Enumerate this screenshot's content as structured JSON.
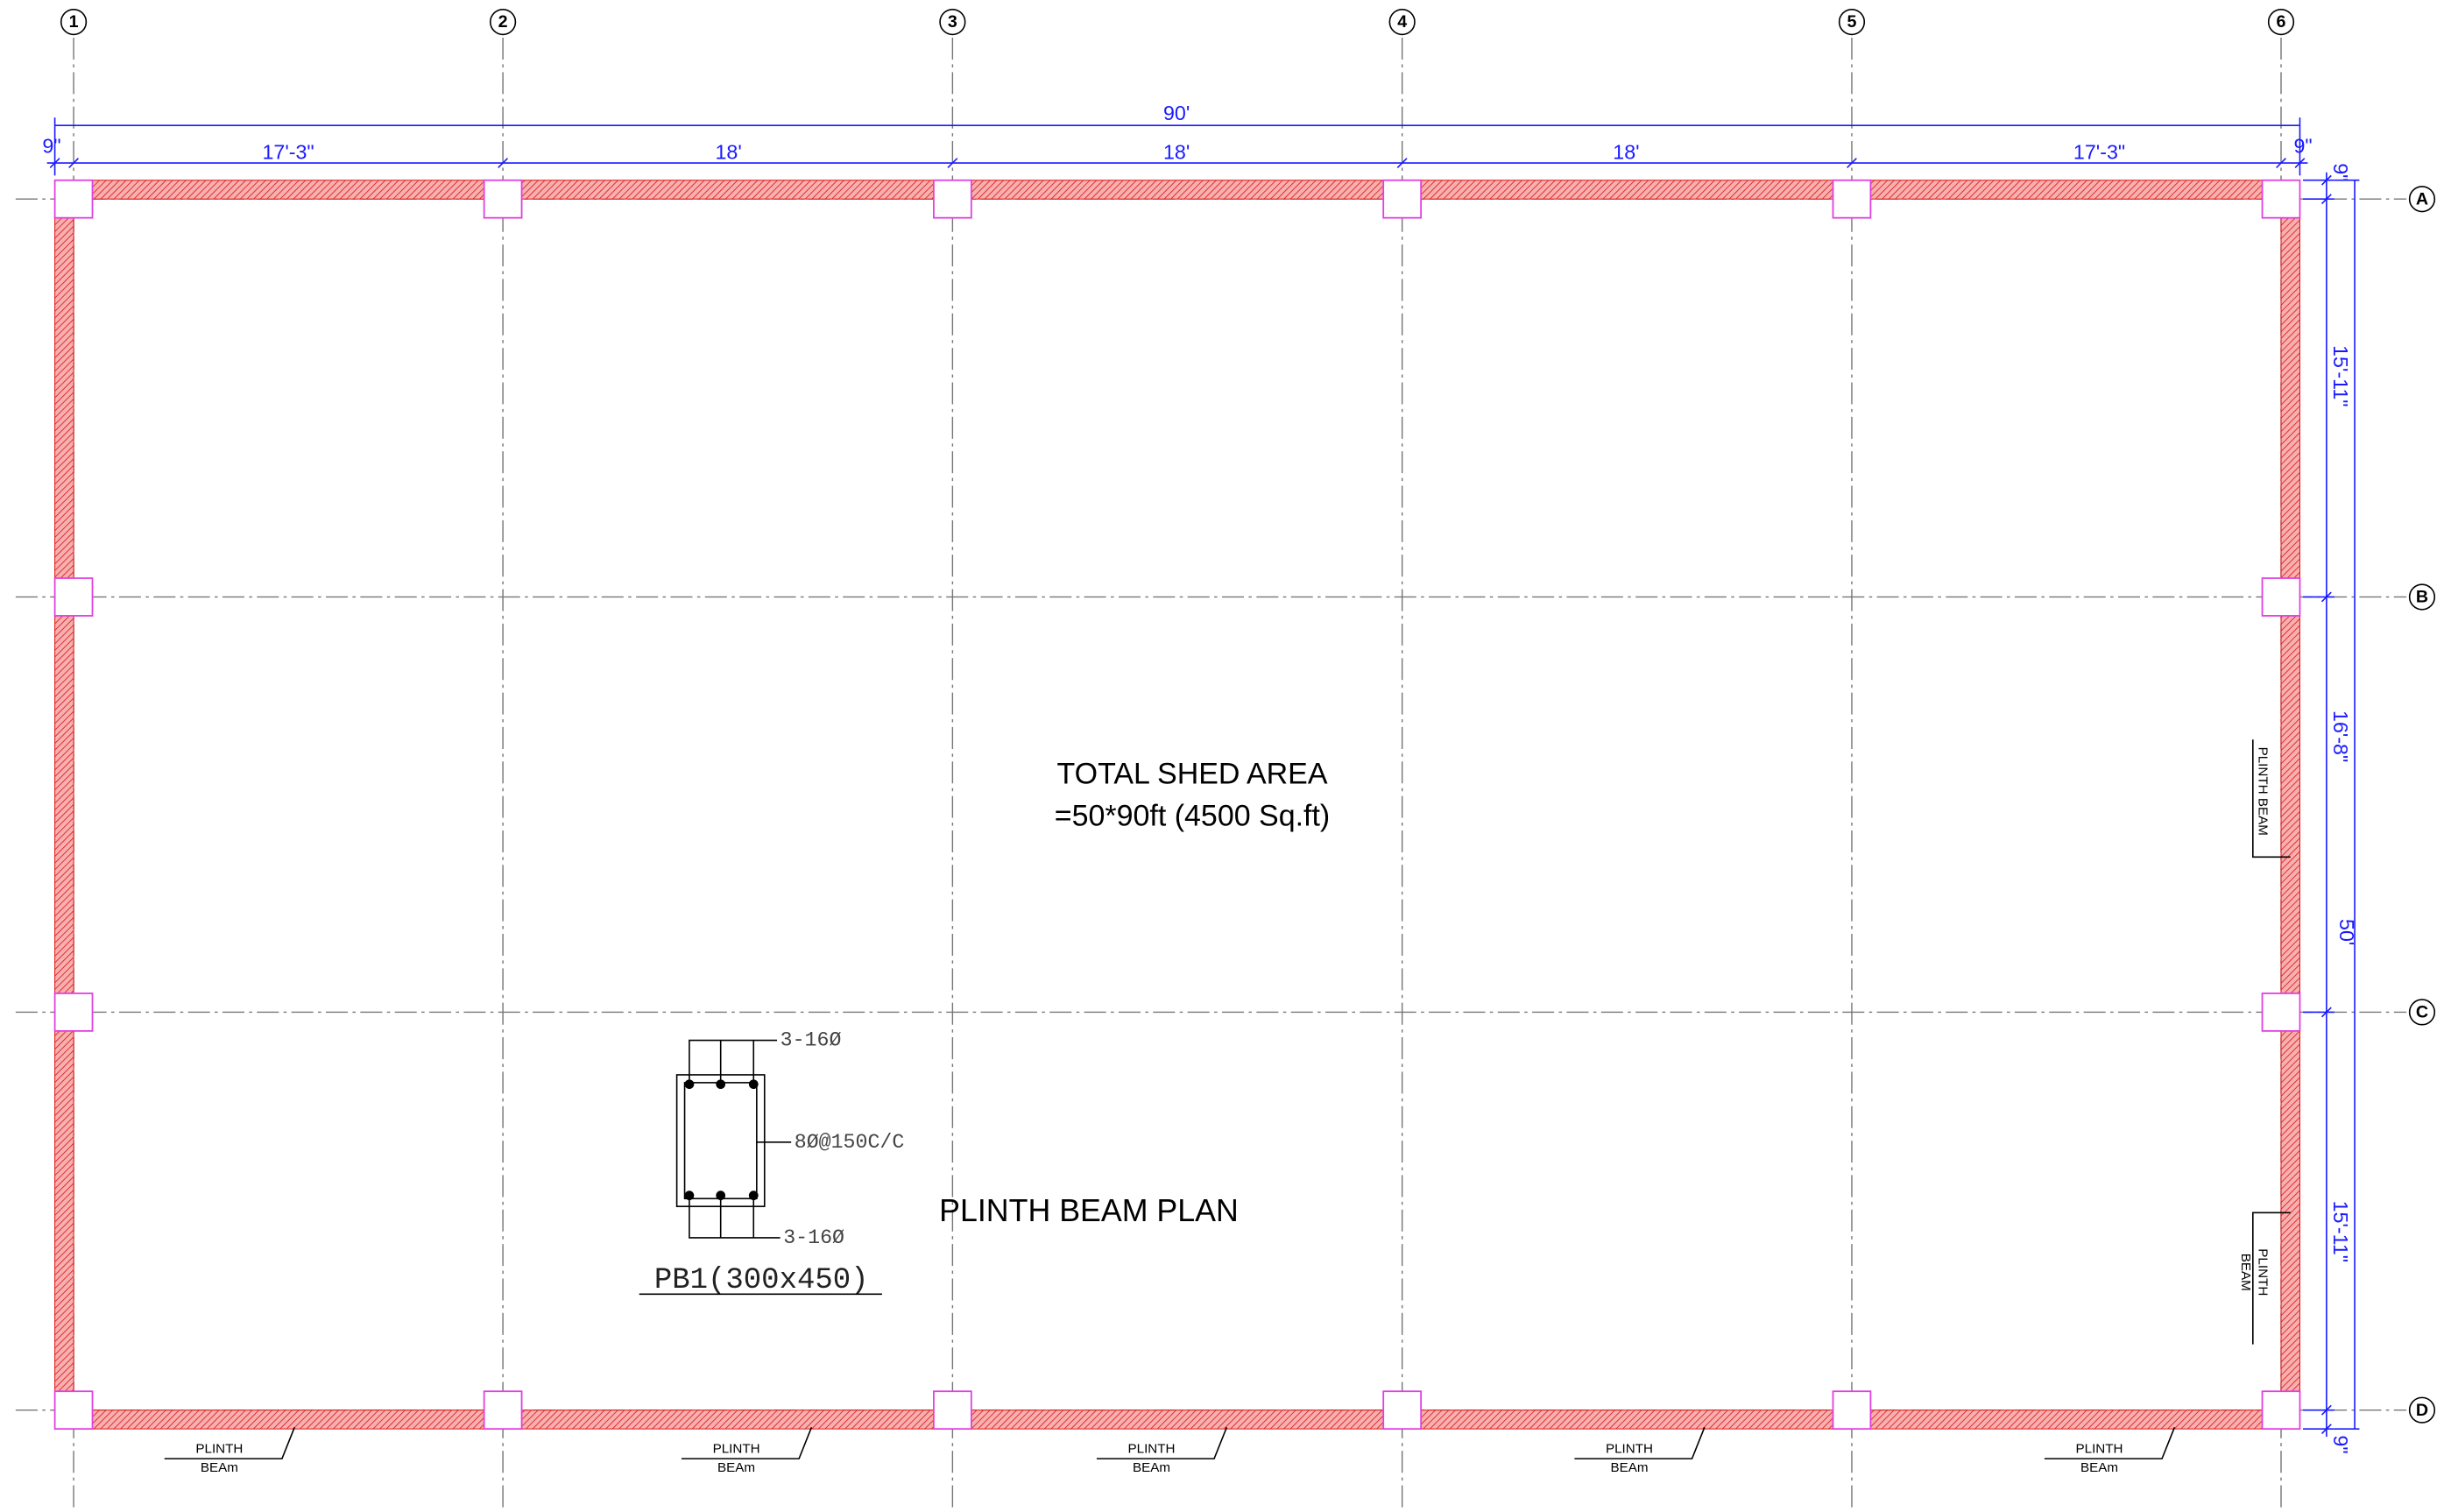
{
  "grid_columns": [
    "1",
    "2",
    "3",
    "4",
    "5",
    "6"
  ],
  "grid_rows": [
    "A",
    "B",
    "C",
    "D"
  ],
  "dimensions": {
    "overall_width": "90'",
    "overall_depth": "50'",
    "bays_x": [
      "9\"",
      "17'-3\"",
      "18'",
      "18'",
      "18'",
      "17'-3\"",
      "9\""
    ],
    "bays_y": [
      "9\"",
      "15'-11\"",
      "16'-8\"",
      "15'-11\"",
      "9\""
    ]
  },
  "annotations": {
    "area_title": "TOTAL SHED AREA",
    "area_value": "=50*90ft (4500 Sq.ft)",
    "plan_title": "PLINTH BEAM PLAN"
  },
  "bottom_beam_labels": [
    {
      "line1": "PLINTH",
      "line2": "BEAm"
    },
    {
      "line1": "PLINTH",
      "line2": "BEAm"
    },
    {
      "line1": "PLINTH",
      "line2": "BEAm"
    },
    {
      "line1": "PLINTH",
      "line2": "BEAm"
    },
    {
      "line1": "PLINTH",
      "line2": "BEAm"
    }
  ],
  "side_beam_labels": [
    {
      "line1": "PLINTH BEAM"
    },
    {
      "line1": "PLINTH",
      "line2": "BEAM"
    }
  ],
  "section": {
    "name": "PB1(300x450)",
    "top_bars": "3-16Ø",
    "stirrups": "8Ø@150C/C",
    "bottom_bars": "3-16Ø"
  }
}
